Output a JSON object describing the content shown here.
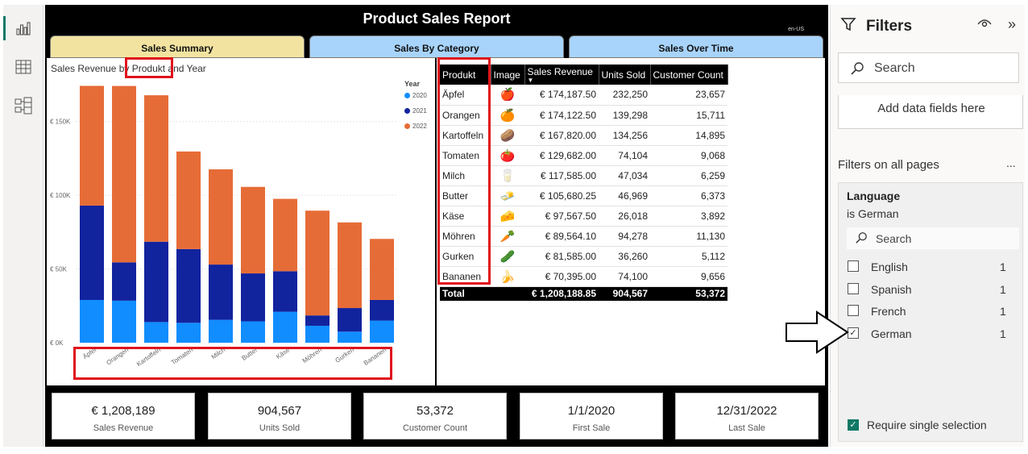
{
  "report": {
    "title": "Product Sales Report",
    "locale": "en-US"
  },
  "tabs": [
    {
      "label": "Sales Summary",
      "color": "#f2e4a0"
    },
    {
      "label": "Sales By Category",
      "color": "#a8d4fb"
    },
    {
      "label": "Sales Over Time",
      "color": "#a8d4fb"
    }
  ],
  "chart_data": {
    "type": "bar",
    "stacked": true,
    "title": "Sales Revenue by Produkt and Year",
    "legend_title": "Year",
    "legend_position": "top-right",
    "categories": [
      "Äpfel",
      "Orangen",
      "Kartoffeln",
      "Tomaten",
      "Milch",
      "Butter",
      "Käse",
      "Möhren",
      "Gurken",
      "Bananen"
    ],
    "series": [
      {
        "name": "2020",
        "color": "#118dff",
        "values": [
          29000,
          28500,
          14000,
          13500,
          15500,
          14500,
          21000,
          11500,
          7500,
          15000
        ]
      },
      {
        "name": "2021",
        "color": "#12239e",
        "values": [
          64000,
          26000,
          54500,
          50000,
          37500,
          32500,
          27500,
          7000,
          16000,
          14000
        ]
      },
      {
        "name": "2022",
        "color": "#e66c37",
        "values": [
          81187.5,
          119622.5,
          99320,
          66182,
          64585,
          58680.25,
          49067.5,
          71064.1,
          58085,
          41395
        ]
      }
    ],
    "yticks": [
      {
        "v": 0,
        "label": "€ 0K"
      },
      {
        "v": 50000,
        "label": "€ 50K"
      },
      {
        "v": 100000,
        "label": "€ 100K"
      },
      {
        "v": 150000,
        "label": "€ 150K"
      }
    ],
    "ylim": [
      0,
      175000
    ],
    "grid": true
  },
  "table": {
    "headers": [
      "Produkt",
      "Image",
      "Sales Revenue",
      "Units Sold",
      "Customer Count"
    ],
    "rows": [
      {
        "produkt": "Äpfel",
        "icon": "🍎",
        "revenue": "€ 174,187.50",
        "units": "232,250",
        "customers": "23,657"
      },
      {
        "produkt": "Orangen",
        "icon": "🍊",
        "revenue": "€ 174,122.50",
        "units": "139,298",
        "customers": "15,711"
      },
      {
        "produkt": "Kartoffeln",
        "icon": "🥔",
        "revenue": "€ 167,820.00",
        "units": "134,256",
        "customers": "14,895"
      },
      {
        "produkt": "Tomaten",
        "icon": "🍅",
        "revenue": "€ 129,682.00",
        "units": "74,104",
        "customers": "9,068"
      },
      {
        "produkt": "Milch",
        "icon": "🥛",
        "revenue": "€ 117,585.00",
        "units": "47,034",
        "customers": "6,259"
      },
      {
        "produkt": "Butter",
        "icon": "🧈",
        "revenue": "€ 105,680.25",
        "units": "46,969",
        "customers": "6,373"
      },
      {
        "produkt": "Käse",
        "icon": "🧀",
        "revenue": "€ 97,567.50",
        "units": "26,018",
        "customers": "3,892"
      },
      {
        "produkt": "Möhren",
        "icon": "🥕",
        "revenue": "€ 89,564.10",
        "units": "94,278",
        "customers": "11,130"
      },
      {
        "produkt": "Gurken",
        "icon": "🥒",
        "revenue": "€ 81,585.00",
        "units": "36,260",
        "customers": "5,112"
      },
      {
        "produkt": "Bananen",
        "icon": "🍌",
        "revenue": "€ 70,395.00",
        "units": "74,100",
        "customers": "9,656"
      }
    ],
    "total": {
      "label": "Total",
      "revenue": "€ 1,208,188.85",
      "units": "904,567",
      "customers": "53,372"
    }
  },
  "kpis": [
    {
      "value": "€ 1,208,189",
      "label": "Sales Revenue"
    },
    {
      "value": "904,567",
      "label": "Units Sold"
    },
    {
      "value": "53,372",
      "label": "Customer Count"
    },
    {
      "value": "1/1/2020",
      "label": "First Sale"
    },
    {
      "value": "12/31/2022",
      "label": "Last Sale"
    }
  ],
  "filters": {
    "title": "Filters",
    "search_placeholder": "Search",
    "add_fields": "Add data fields here",
    "all_pages_label": "Filters on all pages",
    "more": "...",
    "card": {
      "title": "Language",
      "subtitle": "is German",
      "search_placeholder": "Search",
      "options": [
        {
          "label": "English",
          "count": "1",
          "checked": false
        },
        {
          "label": "Spanish",
          "count": "1",
          "checked": false
        },
        {
          "label": "French",
          "count": "1",
          "checked": false
        },
        {
          "label": "German",
          "count": "1",
          "checked": true
        }
      ],
      "require_single": "Require single selection"
    }
  },
  "colors": {
    "accent": "#117865",
    "highlight": "#e0141c"
  }
}
